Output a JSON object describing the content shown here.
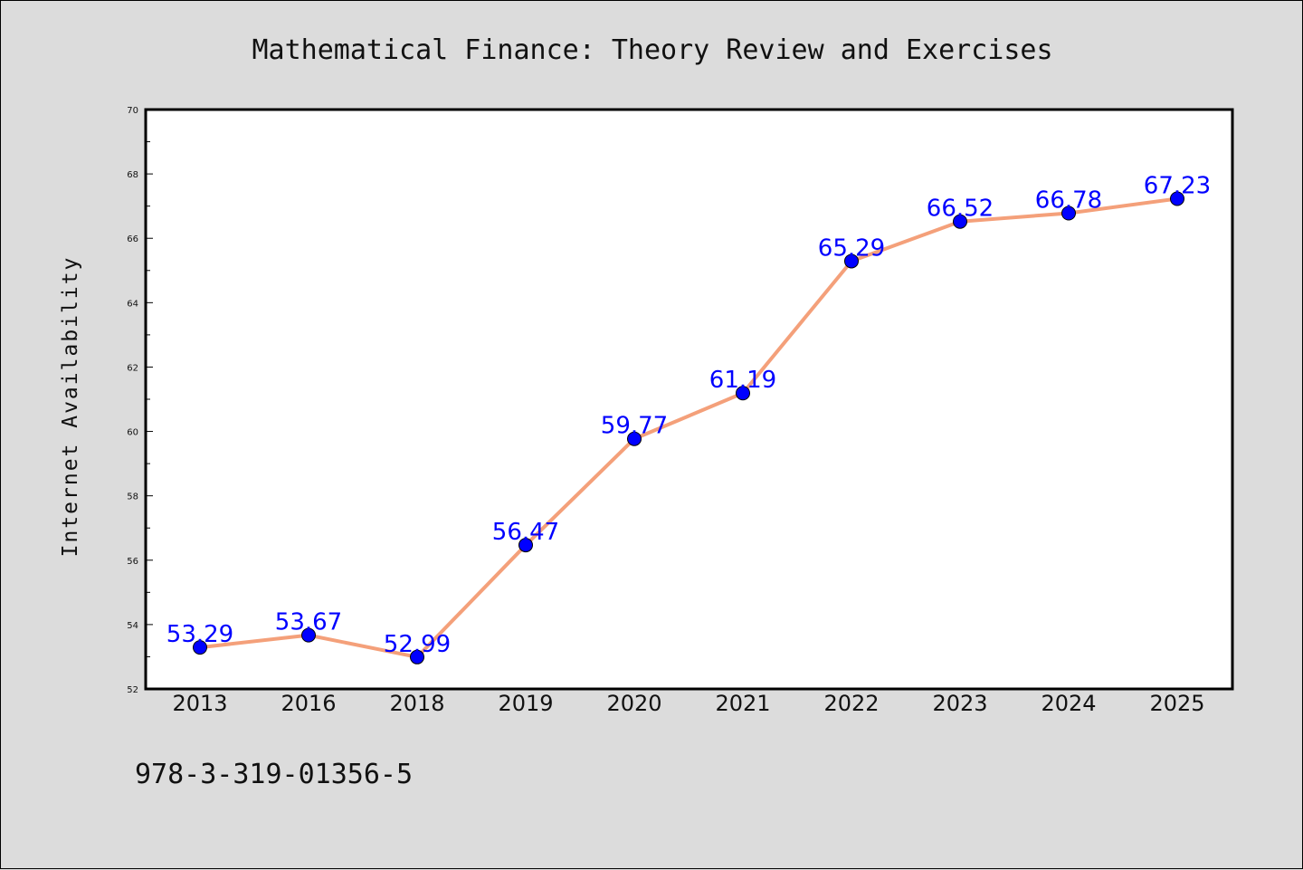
{
  "chart_data": {
    "type": "line",
    "title": "Mathematical Finance: Theory Review and Exercises",
    "xlabel": "",
    "ylabel": "Internet Availability",
    "categories": [
      "2013",
      "2016",
      "2018",
      "2019",
      "2020",
      "2021",
      "2022",
      "2023",
      "2024",
      "2025"
    ],
    "series": [
      {
        "values": [
          53.29,
          53.67,
          52.99,
          56.47,
          59.77,
          61.19,
          65.29,
          66.52,
          66.78,
          67.23
        ],
        "data_labels": [
          "53.29",
          "53.67",
          "52.99",
          "56.47",
          "59.77",
          "61.19",
          "65.29",
          "66.52",
          "66.78",
          "67.23"
        ],
        "line_color": "#f4a07a",
        "marker_color": "#0000ff",
        "label_color": "#0000ff"
      }
    ],
    "ylim": [
      52,
      70
    ],
    "yticks": [
      "52",
      "54",
      "56",
      "58",
      "60",
      "62",
      "64",
      "66",
      "68",
      "70"
    ],
    "grid": false,
    "legend": "none",
    "annotation": "978-3-319-01356-5"
  },
  "colors": {
    "background": "#dcdcdc",
    "plot_area": "#ffffff"
  }
}
